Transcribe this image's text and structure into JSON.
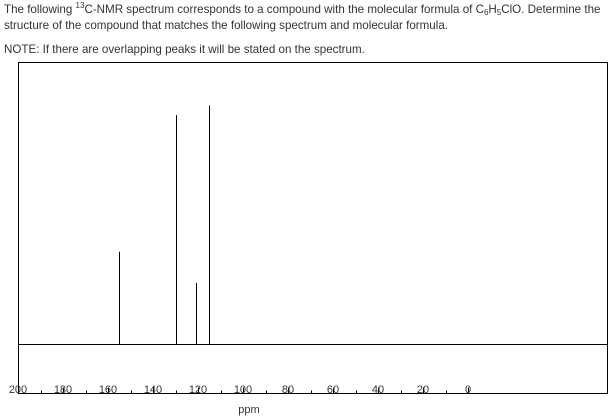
{
  "question": {
    "line1_a": "The following ",
    "line1_sup": "13",
    "line1_b": "C-NMR spectrum corresponds to a compound with the molecular formula of C",
    "formula_sub1": "6",
    "formula_h": "H",
    "formula_sub2": "5",
    "formula_rest": "ClO",
    "line1_c": ". Determine the structure of the compound that matches the following spectrum and molecular formula.",
    "note": "NOTE: If there are overlapping peaks it will be stated on the spectrum."
  },
  "chart_data": {
    "type": "line",
    "xlabel": "ppm",
    "xlim": [
      200,
      0
    ],
    "x_reversed": true,
    "ylim": [
      0,
      1
    ],
    "ticks": [
      "200",
      "180",
      "160",
      "140",
      "120",
      "100",
      "80",
      "60",
      "40",
      "20",
      "0"
    ],
    "tick_values": [
      200,
      180,
      160,
      140,
      120,
      100,
      80,
      60,
      40,
      20,
      0
    ],
    "minor_tick_step": 10,
    "peaks": [
      {
        "ppm": 155.0,
        "height": 0.365
      },
      {
        "ppm": 129.6,
        "height": 0.903
      },
      {
        "ppm": 121.0,
        "height": 0.242
      },
      {
        "ppm": 115.3,
        "height": 0.941
      }
    ],
    "grid": false,
    "colors": {
      "line": "#000000",
      "text": "#333333"
    }
  }
}
